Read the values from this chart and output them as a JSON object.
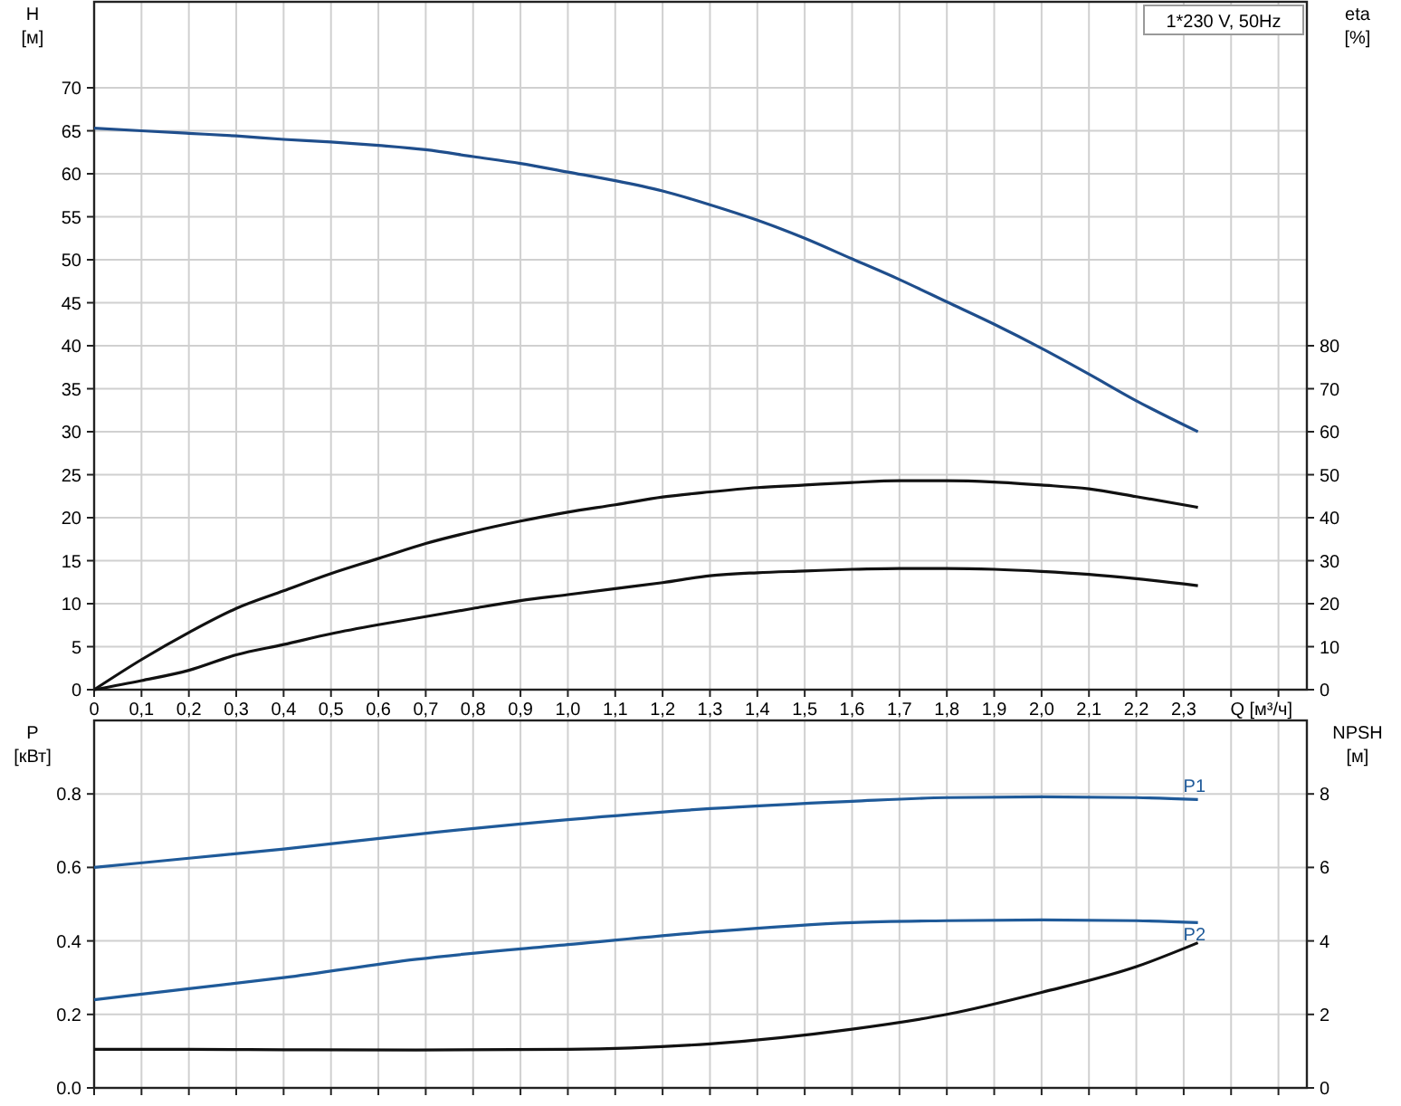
{
  "chart_data": [
    {
      "type": "line",
      "xlabel": "Q [м³/ч]",
      "ylabel": "H [м]",
      "y2label": "eta [%]",
      "annotations": [
        "1*230 V, 50Hz"
      ],
      "grid": true,
      "x": [
        0,
        0.1,
        0.2,
        0.3,
        0.4,
        0.5,
        0.6,
        0.7,
        0.8,
        0.9,
        1.0,
        1.1,
        1.2,
        1.3,
        1.4,
        1.5,
        1.6,
        1.7,
        1.8,
        1.9,
        2.0,
        2.1,
        2.2,
        2.33
      ],
      "xlim": [
        0,
        2.56
      ],
      "xticks": [
        0,
        {
          "value": 0.1,
          "label": "0,1"
        },
        {
          "value": 0.2,
          "label": "0,2"
        },
        {
          "value": 0.3,
          "label": "0,3"
        },
        {
          "value": 0.4,
          "label": "0,4"
        },
        {
          "value": 0.5,
          "label": "0,5"
        },
        {
          "value": 0.6,
          "label": "0,6"
        },
        {
          "value": 0.7,
          "label": "0,7"
        },
        {
          "value": 0.8,
          "label": "0,8"
        },
        {
          "value": 0.9,
          "label": "0,9"
        },
        {
          "value": 1.0,
          "label": "1,0"
        },
        {
          "value": 1.1,
          "label": "1,1"
        },
        {
          "value": 1.2,
          "label": "1,2"
        },
        {
          "value": 1.3,
          "label": "1,3"
        },
        {
          "value": 1.4,
          "label": "1,4"
        },
        {
          "value": 1.5,
          "label": "1,5"
        },
        {
          "value": 1.6,
          "label": "1,6"
        },
        {
          "value": 1.7,
          "label": "1,7"
        },
        {
          "value": 1.8,
          "label": "1,8"
        },
        {
          "value": 1.9,
          "label": "1,9"
        },
        {
          "value": 2.0,
          "label": "2,0"
        },
        {
          "value": 2.1,
          "label": "2,1"
        },
        {
          "value": 2.2,
          "label": "2,2"
        },
        {
          "value": 2.3,
          "label": "2,3"
        },
        {
          "value": 2.4,
          "label": null
        },
        {
          "value": 2.5,
          "label": null
        }
      ],
      "ylim": [
        0,
        80
      ],
      "yticks": [
        0,
        5,
        10,
        15,
        20,
        25,
        30,
        35,
        40,
        45,
        50,
        55,
        60,
        65,
        70
      ],
      "y2lim": [
        0,
        160
      ],
      "y2ticks": [
        0,
        10,
        20,
        30,
        40,
        50,
        60,
        70,
        80
      ],
      "series": [
        {
          "color": "#1f4e8c",
          "values": [
            65.3,
            65.0,
            64.7,
            64.4,
            64.0,
            63.7,
            63.3,
            62.8,
            62.0,
            61.2,
            60.2,
            59.2,
            58.0,
            56.4,
            54.6,
            52.5,
            50.1,
            47.7,
            45.1,
            42.5,
            39.7,
            36.7,
            33.6,
            30.0
          ]
        },
        {
          "color": "#111111",
          "axis": "y2",
          "values": [
            0,
            7,
            13.3,
            18.9,
            23,
            27,
            30.5,
            34,
            36.8,
            39.2,
            41.3,
            43,
            44.8,
            46,
            47,
            47.6,
            48.2,
            48.6,
            48.6,
            48.3,
            47.6,
            46.7,
            44.9,
            42.4
          ]
        },
        {
          "color": "#111111",
          "axis": "y2",
          "values": [
            0,
            2.1,
            4.5,
            8.1,
            10.5,
            13,
            15.1,
            17,
            18.9,
            20.7,
            22.1,
            23.5,
            24.9,
            26.5,
            27.2,
            27.6,
            28,
            28.2,
            28.2,
            28,
            27.5,
            26.8,
            25.8,
            24.2
          ]
        }
      ]
    },
    {
      "type": "line",
      "ylabel": "P [кВт]",
      "y2label": "NPSH [м]",
      "grid": true,
      "tick_labels": "y",
      "x": [
        0,
        0.2,
        0.4,
        0.68,
        1.0,
        1.3,
        1.6,
        1.8,
        2.0,
        2.2,
        2.33
      ],
      "xlim": [
        0,
        2.56
      ],
      "xticks": [
        0,
        0.1,
        0.2,
        0.3,
        0.4,
        0.5,
        0.6,
        0.7,
        0.8,
        0.9,
        1.0,
        1.1,
        1.2,
        1.3,
        1.4,
        1.5,
        1.6,
        1.7,
        1.8,
        1.9,
        2.0,
        2.1,
        2.2,
        2.3,
        2.4,
        2.5
      ],
      "ylim": [
        0,
        1.0
      ],
      "yticks": [
        {
          "value": 0,
          "label": "0.0"
        },
        {
          "value": 0.2,
          "label": "0.2"
        },
        {
          "value": 0.4,
          "label": "0.4"
        },
        {
          "value": 0.6,
          "label": "0.6"
        },
        {
          "value": 0.8,
          "label": "0.8"
        }
      ],
      "y2lim": [
        0,
        10
      ],
      "y2ticks": [
        0,
        2,
        4,
        6,
        8
      ],
      "series": [
        {
          "name": "P1",
          "color": "#1f5a99",
          "values": [
            0.6,
            0.625,
            0.65,
            0.69,
            0.73,
            0.76,
            0.78,
            0.79,
            0.792,
            0.79,
            0.785
          ]
        },
        {
          "name": "P2",
          "color": "#1f5a99",
          "values": [
            0.24,
            0.27,
            0.3,
            0.35,
            0.39,
            0.425,
            0.45,
            0.455,
            0.457,
            0.455,
            0.45
          ]
        },
        {
          "color": "#111111",
          "axis": "y2",
          "values": [
            1.05,
            1.05,
            1.04,
            1.03,
            1.05,
            1.2,
            1.6,
            2.0,
            2.6,
            3.3,
            3.95
          ]
        }
      ]
    }
  ]
}
